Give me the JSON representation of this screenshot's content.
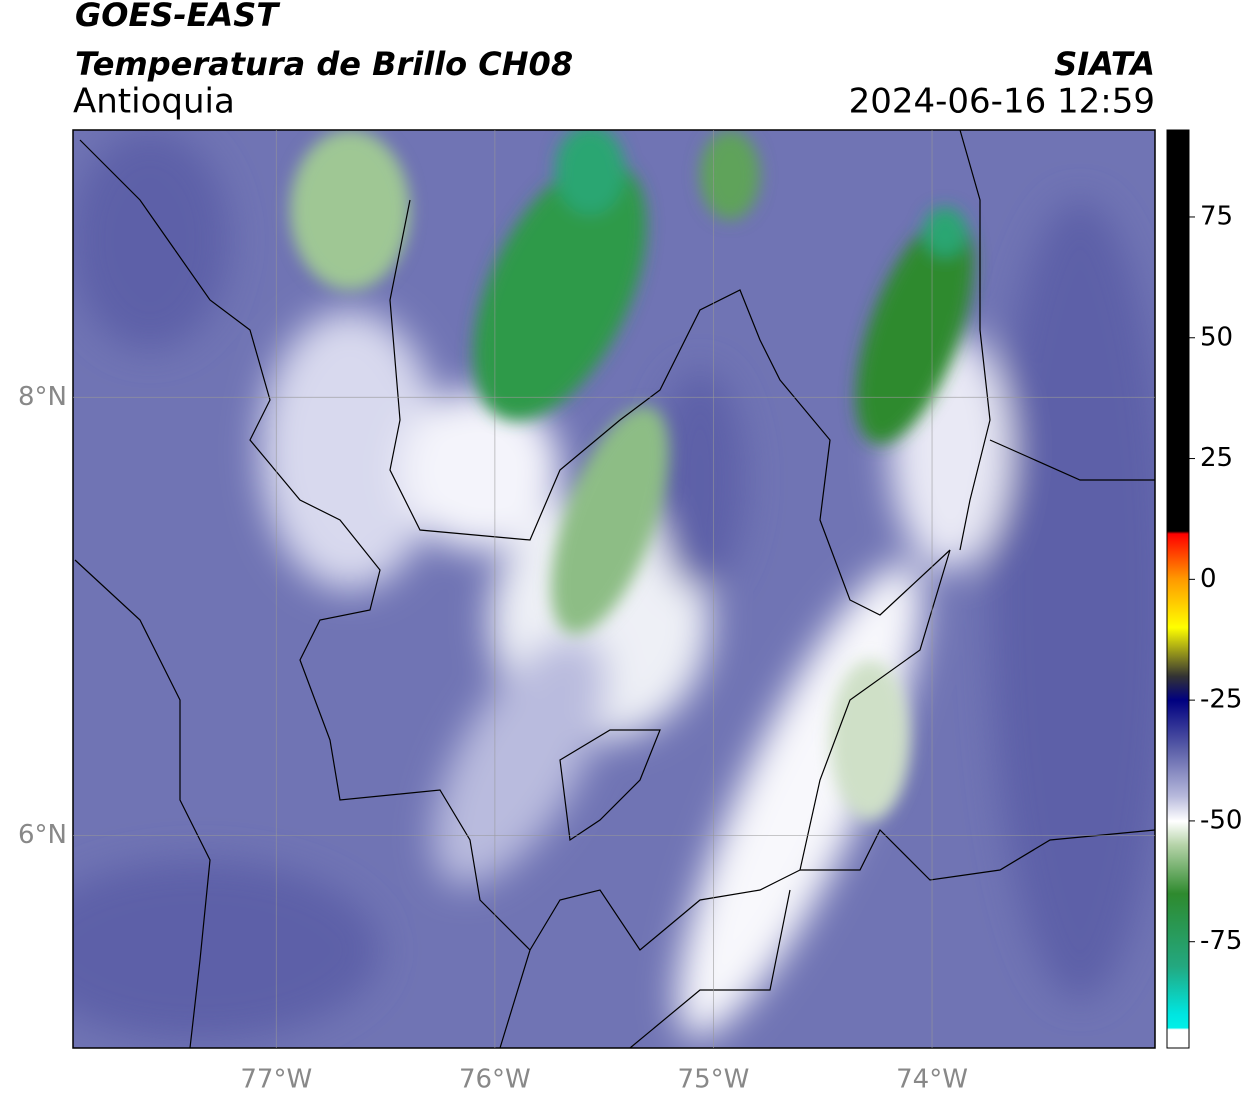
{
  "header": {
    "title": "GOES-EAST",
    "subtitle": "Temperatura de Brillo CH08",
    "region": "Antioquia",
    "source": "SIATA",
    "datetime": "2024-06-16 12:59"
  },
  "map": {
    "xlim": [
      -77.93,
      -72.98
    ],
    "ylim": [
      5.03,
      9.22
    ],
    "grid": true,
    "xticks": [
      {
        "value": -77,
        "label": "77°W"
      },
      {
        "value": -76,
        "label": "76°W"
      },
      {
        "value": -75,
        "label": "75°W"
      },
      {
        "value": -74,
        "label": "74°W"
      }
    ],
    "yticks": [
      {
        "value": 8,
        "label": "8°N"
      },
      {
        "value": 6,
        "label": "6°N"
      }
    ]
  },
  "colorbar": {
    "clim": [
      -97,
      93
    ],
    "ticks": [
      75,
      50,
      25,
      0,
      -25,
      -50,
      -75
    ]
  }
}
